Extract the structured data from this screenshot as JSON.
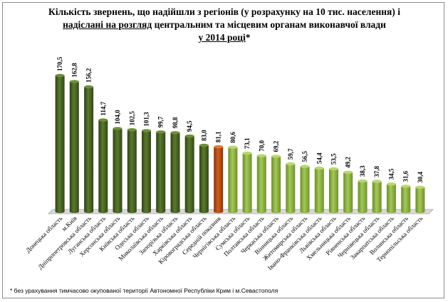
{
  "title": {
    "line1": "Кількість звернень,  що надійшли з регіонів (у розрахунку на 10 тис. населення) і",
    "line2_underlined": "надіслані на розгляд",
    "line2_rest": " центральним та місцевим органам виконавчої влади",
    "line3_underlined": "у 2014 році",
    "line3_star": "*"
  },
  "footnote": "*  без урахування тимчасово окупованої території Автономної Республіки Крим і м.Севастополя",
  "colors": {
    "dark_green": "#4a6423",
    "light_green": "#8eb43c",
    "highlight": "#b34710",
    "floor": "#d9d9d9"
  },
  "chart_data": {
    "type": "bar",
    "title": "Кількість звернень,  що надійшли з регіонів (у розрахунку на 10 тис. населення) і надіслані на розгляд центральним та місцевим органам виконавчої влади у 2014 році*",
    "xlabel": "",
    "ylabel": "",
    "ylim": [
      0,
      190
    ],
    "grid": false,
    "legend": "none",
    "categories": [
      "Донецька область",
      "м.Київ",
      "Дніпропетровська область",
      "Луганська область",
      "Херсонська область",
      "Київська область",
      "Одеська область",
      "Миколаївська область",
      "Запорізька область",
      "Харківська область",
      "Кіровоградська область",
      "Середній показник",
      "Чернігівська область",
      "Сумська область",
      "Полтавська область",
      "Черкаська область",
      "Вінницька область",
      "Житомирська область",
      "Івано-Франківська область",
      "Львівська область",
      "Хмельницька область",
      "Рівненська область",
      "Чернівецька область",
      "Закарпатська область",
      "Волинська область",
      "Тернопільська область"
    ],
    "value_labels": [
      "170,5",
      "162,8",
      "156,2",
      "114,7",
      "104,0",
      "102,5",
      "101,3",
      "99,7",
      "98,8",
      "94,5",
      "83,0",
      "81,1",
      "80,6",
      "73,1",
      "70,0",
      "69,2",
      "59,7",
      "56,5",
      "54,4",
      "53,5",
      "49,2",
      "38,3",
      "37,8",
      "34,5",
      "31,6",
      "30,4"
    ],
    "values": [
      170.5,
      162.8,
      156.2,
      114.7,
      104.0,
      102.5,
      101.3,
      99.7,
      98.8,
      94.5,
      83.0,
      81.1,
      80.6,
      73.1,
      70.0,
      69.2,
      59.7,
      56.5,
      54.4,
      53.5,
      49.2,
      38.3,
      37.8,
      34.5,
      31.6,
      30.4
    ],
    "bar_color_groups": [
      "dark",
      "dark",
      "dark",
      "dark",
      "dark",
      "dark",
      "dark",
      "dark",
      "dark",
      "dark",
      "dark",
      "highlight",
      "light",
      "light",
      "light",
      "light",
      "light",
      "light",
      "light",
      "light",
      "light",
      "light",
      "light",
      "light",
      "light",
      "light"
    ]
  }
}
